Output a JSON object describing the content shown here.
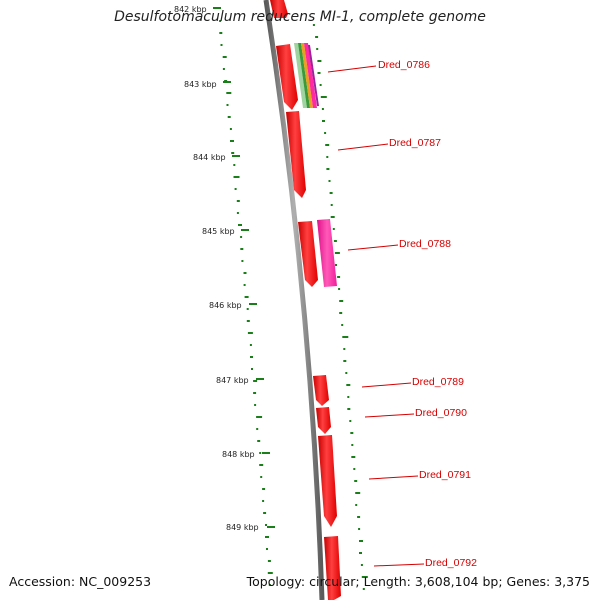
{
  "title": "Desulfotomaculum reducens MI-1, complete genome",
  "accession": "Accession: NC_009253",
  "summary": "Topology: circular; Length: 3,608,104 bp; Genes: 3,375",
  "kbp_labels": [
    "842 kbp",
    "843 kbp",
    "844 kbp",
    "845 kbp",
    "846 kbp",
    "847 kbp",
    "848 kbp",
    "849 kbp"
  ],
  "genes": [
    {
      "label": "Dred_0786"
    },
    {
      "label": "Dred_0787"
    },
    {
      "label": "Dred_0788"
    },
    {
      "label": "Dred_0789"
    },
    {
      "label": "Dred_0790"
    },
    {
      "label": "Dred_0791"
    },
    {
      "label": "Dred_0792"
    }
  ],
  "colors": {
    "gene": "#ee0000",
    "gene_highlight": "#ff5555",
    "magenta_feature": "#ff2aa0",
    "gc_marks": "#1a7f1a",
    "backbone": "#7a7a7a",
    "label": "#d40000"
  }
}
